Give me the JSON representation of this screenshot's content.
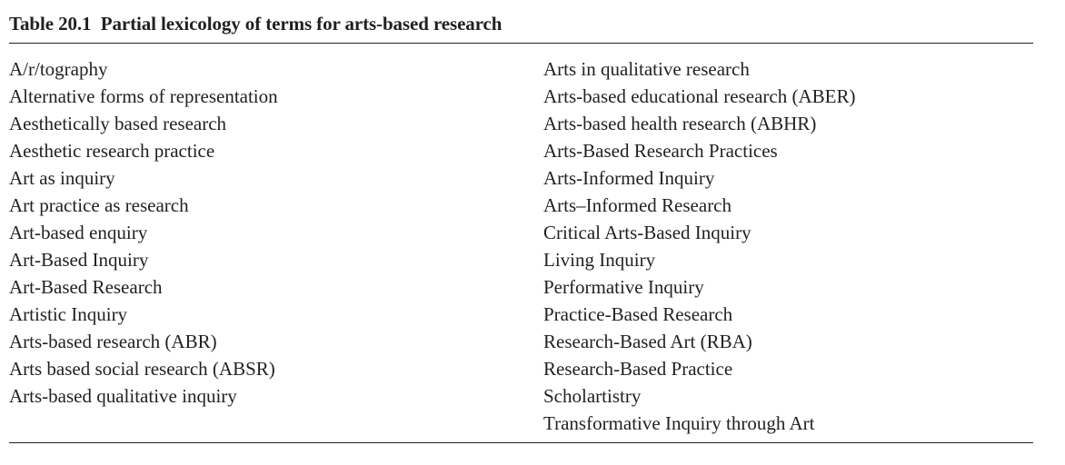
{
  "table": {
    "label": "Table 20.1",
    "caption": "Partial lexicology of terms for arts-based research",
    "left_column": [
      "A/r/tography",
      "Alternative forms of representation",
      "Aesthetically based research",
      "Aesthetic research practice",
      "Art as inquiry",
      "Art practice as research",
      "Art-based enquiry",
      "Art-Based Inquiry",
      "Art-Based Research",
      "Artistic Inquiry",
      "Arts-based research (ABR)",
      "Arts based social research (ABSR)",
      "Arts-based qualitative inquiry"
    ],
    "right_column": [
      "Arts in qualitative research",
      "Arts-based educational research (ABER)",
      "Arts-based health research (ABHR)",
      "Arts-Based Research Practices",
      "Arts-Informed Inquiry",
      "Arts–Informed Research",
      "Critical Arts-Based Inquiry",
      "Living Inquiry",
      "Performative Inquiry",
      "Practice-Based Research",
      "Research-Based Art (RBA)",
      "Research-Based Practice",
      "Scholartistry",
      "Transformative Inquiry through Art"
    ]
  }
}
